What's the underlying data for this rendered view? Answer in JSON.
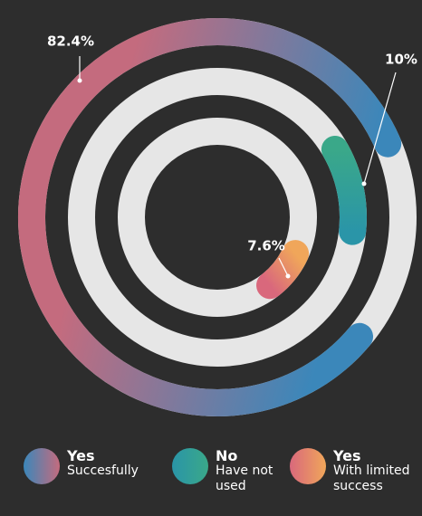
{
  "chart_data": {
    "type": "radial",
    "series": [
      {
        "name": "Yes",
        "description": "Succesfully",
        "value": 82.4,
        "value_label": "82.4%",
        "color": [
          "#c46b7e",
          "#3b87ba"
        ]
      },
      {
        "name": "No",
        "description": "Have not used",
        "value": 10,
        "value_label": "10%",
        "color": [
          "#3aa889",
          "#2a95a8"
        ]
      },
      {
        "name": "Yes",
        "description": "With limited success",
        "value": 7.6,
        "value_label": "7.6%",
        "color": [
          "#f0a65a",
          "#d9687c"
        ]
      }
    ],
    "ylim": [
      0,
      100
    ]
  }
}
